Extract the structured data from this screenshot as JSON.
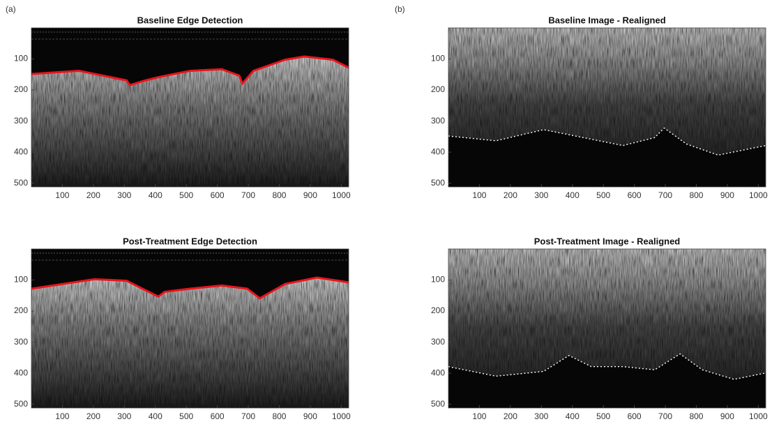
{
  "labels": [
    "(a)",
    "(b)"
  ],
  "panels": [
    {
      "title": "Baseline Edge Detection",
      "xlim": [
        0,
        1024
      ],
      "ylim": [
        0,
        512
      ],
      "xticks": [
        100,
        200,
        300,
        400,
        500,
        600,
        700,
        800,
        900,
        1000
      ],
      "yticks": [
        100,
        200,
        300,
        400,
        500
      ]
    },
    {
      "title": "Baseline Image - Realigned",
      "xlim": [
        0,
        1024
      ],
      "ylim": [
        0,
        512
      ],
      "xticks": [
        100,
        200,
        300,
        400,
        500,
        600,
        700,
        800,
        900,
        1000
      ],
      "yticks": [
        100,
        200,
        300,
        400,
        500
      ]
    },
    {
      "title": "Post-Treatment Edge Detection",
      "xlim": [
        0,
        1024
      ],
      "ylim": [
        0,
        512
      ],
      "xticks": [
        100,
        200,
        300,
        400,
        500,
        600,
        700,
        800,
        900,
        1000
      ],
      "yticks": [
        100,
        200,
        300,
        400,
        500
      ]
    },
    {
      "title": "Post-Treatment Image - Realigned",
      "xlim": [
        0,
        1024
      ],
      "ylim": [
        0,
        512
      ],
      "xticks": [
        100,
        200,
        300,
        400,
        500,
        600,
        700,
        800,
        900,
        1000
      ],
      "yticks": [
        100,
        200,
        300,
        400,
        500
      ]
    }
  ]
}
